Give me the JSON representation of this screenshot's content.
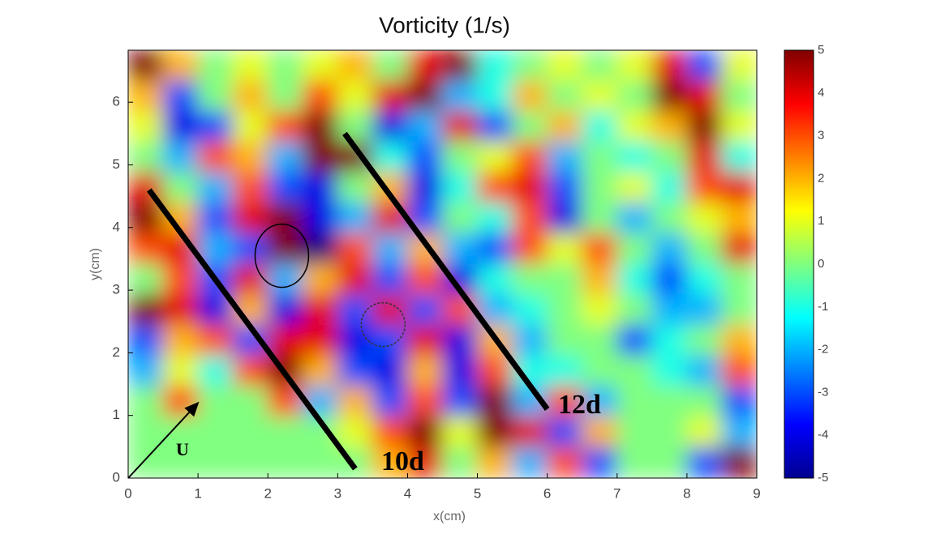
{
  "chart_data": {
    "type": "heatmap",
    "title": "Vorticity (1/s)",
    "x_label": "x(cm)",
    "y_label": "y(cm)",
    "xlim": [
      0,
      9
    ],
    "ylim": [
      0,
      6.83
    ],
    "xticks": [
      0,
      1,
      2,
      3,
      4,
      5,
      6,
      7,
      8,
      9
    ],
    "yticks": [
      0,
      1,
      2,
      3,
      4,
      5,
      6
    ],
    "colormap": "jet",
    "zlim": [
      -5,
      5
    ],
    "colorbar_ticks": [
      5,
      4,
      3,
      2,
      1,
      0,
      -1,
      -2,
      -3,
      -4,
      -5
    ],
    "z": [
      [
        5,
        2,
        0,
        1,
        0,
        1,
        2,
        0,
        4,
        5,
        -1,
        0,
        1,
        0,
        1,
        4,
        -3,
        1
      ],
      [
        2,
        -3,
        0,
        2,
        0,
        3,
        1,
        4,
        5,
        -2,
        -1,
        2,
        0,
        1,
        0,
        5,
        4,
        0
      ],
      [
        1,
        -4,
        -3,
        1,
        3,
        5,
        0,
        -4,
        -2,
        4,
        -3,
        0,
        2,
        -1,
        1,
        2,
        5,
        1
      ],
      [
        0,
        -2,
        3,
        2,
        -2,
        5,
        5,
        -1,
        -3,
        0,
        1,
        3,
        -2,
        0,
        -1,
        0,
        4,
        -1
      ],
      [
        4,
        0,
        -2,
        3,
        -3,
        -4,
        0,
        2,
        -4,
        -1,
        3,
        4,
        -3,
        0,
        1,
        -1,
        3,
        4
      ],
      [
        5,
        2,
        -3,
        4,
        5,
        -4,
        -2,
        4,
        -3,
        0,
        -1,
        3,
        -4,
        0,
        -2,
        0,
        1,
        2
      ],
      [
        3,
        4,
        -2,
        -3,
        5,
        -5,
        3,
        -2,
        2,
        -2,
        -3,
        3,
        1,
        3,
        0,
        -2,
        0,
        4
      ],
      [
        0,
        3,
        -3,
        4,
        -2,
        2,
        4,
        -3,
        3,
        -4,
        -1,
        0,
        0,
        2,
        -1,
        -3,
        -1,
        0
      ],
      [
        5,
        4,
        -4,
        2,
        -4,
        4,
        -3,
        4,
        -3,
        3,
        -2,
        -1,
        0,
        1,
        0,
        -2,
        -2,
        0
      ],
      [
        -3,
        2,
        3,
        -3,
        4,
        4,
        -4,
        -3,
        4,
        -4,
        2,
        -2,
        0,
        0,
        -3,
        -1,
        0,
        2
      ],
      [
        -2,
        1,
        -1,
        3,
        5,
        2,
        -3,
        -4,
        2,
        -4,
        3,
        -1,
        -1,
        0,
        0,
        -1,
        -2,
        3
      ],
      [
        0,
        3,
        0,
        0,
        3,
        -2,
        2,
        -3,
        3,
        -3,
        5,
        -2,
        3,
        -2,
        0,
        0,
        0,
        -3
      ],
      [
        0,
        0,
        0,
        0,
        0,
        0,
        1,
        3,
        5,
        1,
        5,
        4,
        -3,
        2,
        0,
        0,
        1,
        -2
      ],
      [
        0,
        0,
        0,
        0,
        0,
        0,
        0,
        2,
        4,
        0,
        2,
        -2,
        3,
        -3,
        0,
        0,
        -3,
        5
      ]
    ],
    "annotations": [
      "10d",
      "12d",
      "U"
    ]
  }
}
